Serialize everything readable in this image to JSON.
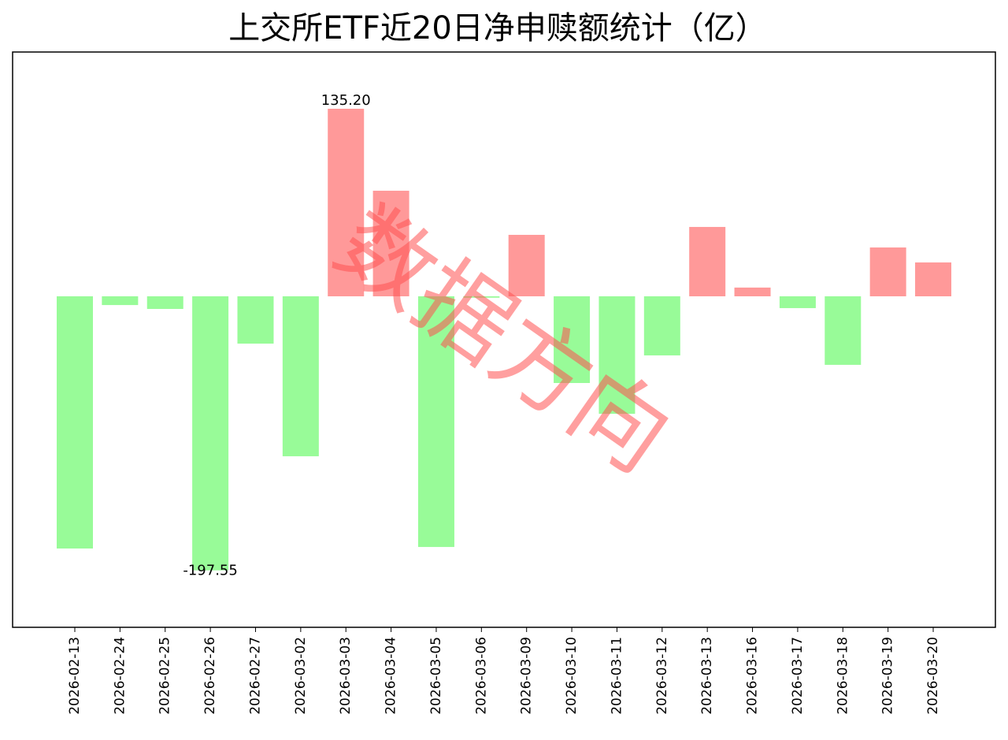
{
  "chart_data": {
    "type": "bar",
    "title": "上交所ETF近20日净申赎额统计（亿）",
    "categories": [
      "2026-02-13",
      "2026-02-24",
      "2026-02-25",
      "2026-02-26",
      "2026-02-27",
      "2026-03-02",
      "2026-03-03",
      "2026-03-04",
      "2026-03-05",
      "2026-03-06",
      "2026-03-09",
      "2026-03-10",
      "2026-03-11",
      "2026-03-12",
      "2026-03-13",
      "2026-03-16",
      "2026-03-17",
      "2026-03-18",
      "2026-03-19",
      "2026-03-20"
    ],
    "values": [
      -181.8,
      -6.3,
      -9.1,
      -197.55,
      -34.1,
      -115.3,
      135.2,
      76.1,
      -180.7,
      -1,
      44.3,
      -62.5,
      -84.7,
      -42.6,
      50.0,
      6.3,
      -8.5,
      -49.4,
      35.2,
      24.4
    ],
    "value_labels": [
      null,
      null,
      null,
      "-197.55",
      null,
      null,
      "135.20",
      null,
      null,
      null,
      null,
      null,
      null,
      null,
      null,
      null,
      null,
      null,
      null,
      null
    ],
    "positive_color": "#ff9999",
    "negative_color": "#98fb98",
    "ylim": [
      -238.6,
      176.1
    ],
    "watermark": "数据方向"
  }
}
